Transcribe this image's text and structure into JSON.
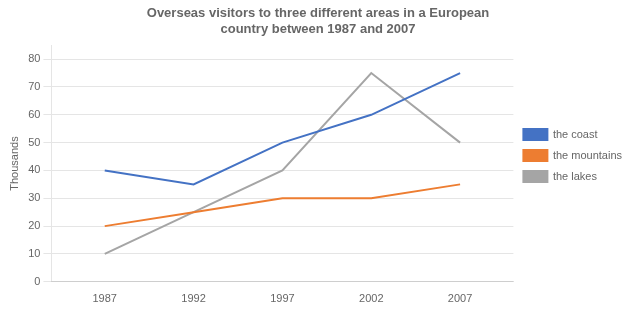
{
  "chart_data": {
    "type": "line",
    "title": [
      "Overseas visitors to three different areas in a European",
      "country between 1987 and 2007"
    ],
    "y_label": "Thousands",
    "x": [
      1987,
      1992,
      1997,
      2002,
      2007
    ],
    "series": [
      {
        "name": "the coast",
        "color": "#4472C4",
        "values": [
          40,
          35,
          50,
          60,
          75
        ]
      },
      {
        "name": "the mountains",
        "color": "#ED7D31",
        "values": [
          20,
          25,
          30,
          30,
          35
        ]
      },
      {
        "name": "the lakes",
        "color": "#A5A5A5",
        "values": [
          10,
          25,
          40,
          75,
          50
        ]
      }
    ],
    "xlim": [
      1984,
      2010
    ],
    "xticks": [
      1987,
      1992,
      1997,
      2002,
      2007
    ],
    "ylim": [
      0,
      85
    ],
    "yticks": [
      0,
      10,
      20,
      30,
      40,
      50,
      60,
      70,
      80
    ],
    "grid": "y",
    "legend": "right",
    "marker": "none"
  }
}
